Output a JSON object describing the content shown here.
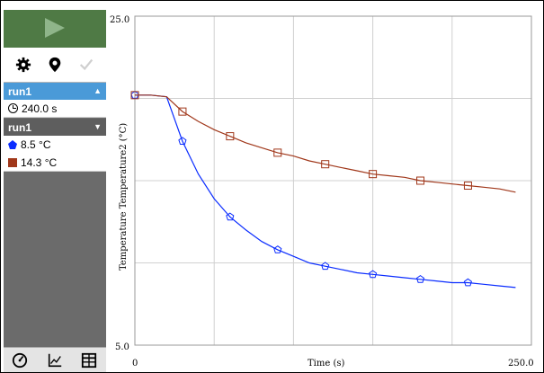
{
  "sidebar": {
    "play_icon": "play-icon",
    "tools": [
      {
        "name": "settings-icon"
      },
      {
        "name": "marker-pin-icon"
      },
      {
        "name": "checkmark-icon"
      }
    ],
    "run_top": {
      "label": "run1",
      "caret": "▲"
    },
    "elapsed_time": "240.0 s",
    "run_second": {
      "label": "run1",
      "caret": "▼"
    },
    "measurements": [
      {
        "value": "8.5 °C",
        "color": "#0a2cff",
        "marker": "pentagon"
      },
      {
        "value": "14.3 °C",
        "color": "#a0371a",
        "marker": "square"
      }
    ],
    "bottom_tools": [
      {
        "name": "meter-view-icon"
      },
      {
        "name": "graph-view-icon"
      },
      {
        "name": "table-view-icon"
      }
    ]
  },
  "chart_data": {
    "type": "line",
    "xlabel": "Time (s)",
    "ylabel": "Temperature Temperature2 (°C)",
    "xlim": [
      0,
      250
    ],
    "ylim": [
      5,
      25
    ],
    "x_ticks_labels": [
      "0",
      "250.0"
    ],
    "y_ticks_labels": [
      "5.0",
      "25.0"
    ],
    "grid": true,
    "series": [
      {
        "color": "#0a2cff",
        "marker": "pentagon",
        "x": [
          0,
          10,
          20,
          30,
          40,
          50,
          60,
          70,
          80,
          90,
          100,
          110,
          120,
          130,
          140,
          150,
          160,
          170,
          180,
          190,
          200,
          210,
          220,
          230,
          240
        ],
        "y": [
          20.2,
          20.2,
          20.1,
          17.4,
          15.4,
          13.9,
          12.8,
          12.0,
          11.3,
          10.8,
          10.4,
          10.0,
          9.8,
          9.6,
          9.4,
          9.3,
          9.2,
          9.1,
          9.0,
          8.9,
          8.8,
          8.8,
          8.7,
          8.6,
          8.5
        ]
      },
      {
        "color": "#a0371a",
        "marker": "square",
        "x": [
          0,
          10,
          20,
          30,
          40,
          50,
          60,
          70,
          80,
          90,
          100,
          110,
          120,
          130,
          140,
          150,
          160,
          170,
          180,
          190,
          200,
          210,
          220,
          230,
          240
        ],
        "y": [
          20.2,
          20.2,
          20.1,
          19.2,
          18.6,
          18.1,
          17.7,
          17.3,
          17.0,
          16.7,
          16.5,
          16.2,
          16.0,
          15.8,
          15.6,
          15.4,
          15.3,
          15.2,
          15.0,
          14.9,
          14.8,
          14.7,
          14.6,
          14.5,
          14.3
        ]
      }
    ],
    "marker_x": [
      0,
      30,
      60,
      90,
      120,
      150,
      180,
      210
    ]
  }
}
